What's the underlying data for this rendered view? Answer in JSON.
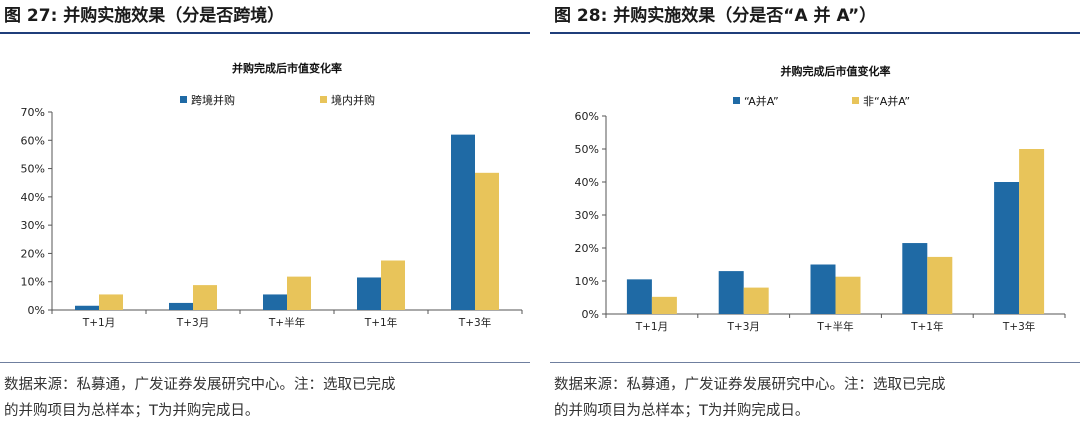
{
  "colors": {
    "series_a": "#1f6aa5",
    "series_b": "#e8c45a",
    "rule": "#1f3d7a",
    "axis": "#555555"
  },
  "charts": [
    {
      "figure_title": "图 27:  并购实施效果（分是否跨境）",
      "source_line1": "数据来源：私募通，广发证券发展研究中心。注：选取已完成",
      "source_line2": "的并购项目为总样本；T为并购完成日。",
      "chart_data": {
        "type": "bar",
        "title": "并购完成后市值变化率",
        "categories": [
          "T+1月",
          "T+3月",
          "T+半年",
          "T+1年",
          "T+3年"
        ],
        "series": [
          {
            "name": "跨境并购",
            "values": [
              0.015,
              0.025,
              0.055,
              0.115,
              0.62
            ]
          },
          {
            "name": "境内并购",
            "values": [
              0.055,
              0.088,
              0.118,
              0.175,
              0.485
            ]
          }
        ],
        "ylim": [
          0,
          0.7
        ],
        "yticks": [
          "0%",
          "10%",
          "20%",
          "30%",
          "40%",
          "50%",
          "60%",
          "70%"
        ],
        "grid": false,
        "legend_position": "top"
      }
    },
    {
      "figure_title": "图 28:  并购实施效果（分是否“A 并 A”）",
      "source_line1": "数据来源：私募通，广发证券发展研究中心。注：选取已完成",
      "source_line2": "的并购项目为总样本；T为并购完成日。",
      "chart_data": {
        "type": "bar",
        "title": "并购完成后市值变化率",
        "categories": [
          "T+1月",
          "T+3月",
          "T+半年",
          "T+1年",
          "T+3年"
        ],
        "series": [
          {
            "name": "“A并A”",
            "values": [
              0.105,
              0.13,
              0.15,
              0.215,
              0.4
            ]
          },
          {
            "name": "非“A并A”",
            "values": [
              0.052,
              0.08,
              0.113,
              0.173,
              0.5
            ]
          }
        ],
        "ylim": [
          0,
          0.6
        ],
        "yticks": [
          "0%",
          "10%",
          "20%",
          "30%",
          "40%",
          "50%",
          "60%"
        ],
        "grid": false,
        "legend_position": "top"
      }
    }
  ]
}
